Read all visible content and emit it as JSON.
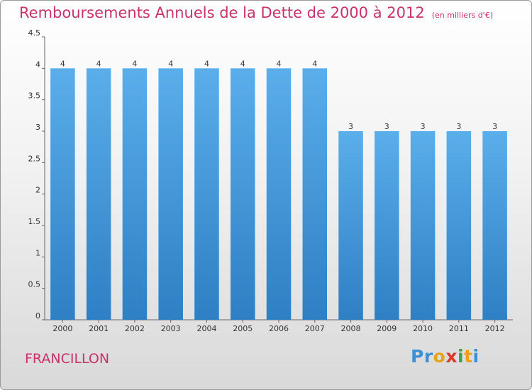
{
  "header": {
    "title": "Remboursements Annuels de la Dette de 2000 à 2012",
    "subtitle": "(en milliers d'€)"
  },
  "footer": {
    "commune": "FRANCILLON",
    "logo_letters": [
      {
        "char": "P",
        "color": "#3d8fd6"
      },
      {
        "char": "r",
        "color": "#3d8fd6"
      },
      {
        "char": "o",
        "color": "#e8a21e"
      },
      {
        "char": "x",
        "color": "#d93a2b"
      },
      {
        "char": "i",
        "color": "#3aa54a"
      },
      {
        "char": "t",
        "color": "#e8a21e"
      },
      {
        "char": "i",
        "color": "#3d8fd6"
      }
    ]
  },
  "chart_data": {
    "type": "bar",
    "categories": [
      "2000",
      "2001",
      "2002",
      "2003",
      "2004",
      "2005",
      "2006",
      "2007",
      "2008",
      "2009",
      "2010",
      "2011",
      "2012"
    ],
    "values": [
      4,
      4,
      4,
      4,
      4,
      4,
      4,
      4,
      3,
      3,
      3,
      3,
      3
    ],
    "data_labels": [
      "4",
      "4",
      "4",
      "4",
      "4",
      "4",
      "4",
      "4",
      "3",
      "3",
      "3",
      "3",
      "3"
    ],
    "ylim": [
      0,
      4.5
    ],
    "yticks": [
      0,
      0.5,
      1,
      1.5,
      2,
      2.5,
      3,
      3.5,
      4,
      4.5
    ],
    "ytick_labels": [
      "0",
      "0.5",
      "1",
      "1.5",
      "2",
      "2.5",
      "3",
      "3.5",
      "4",
      "4.5"
    ],
    "grid": false,
    "colors": {
      "bar_top": "#5aaeea",
      "bar_bottom": "#2f7fc4",
      "title": "#c8336b"
    }
  }
}
